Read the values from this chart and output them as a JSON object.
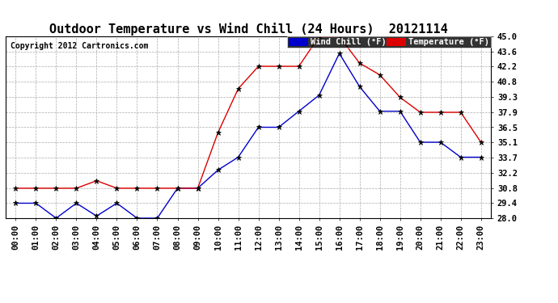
{
  "title": "Outdoor Temperature vs Wind Chill (24 Hours)  20121114",
  "copyright": "Copyright 2012 Cartronics.com",
  "legend_wind": "Wind Chill (°F)",
  "legend_temp": "Temperature (°F)",
  "hours": [
    "00:00",
    "01:00",
    "02:00",
    "03:00",
    "04:00",
    "05:00",
    "06:00",
    "07:00",
    "08:00",
    "09:00",
    "10:00",
    "11:00",
    "12:00",
    "13:00",
    "14:00",
    "15:00",
    "16:00",
    "17:00",
    "18:00",
    "19:00",
    "20:00",
    "21:00",
    "22:00",
    "23:00"
  ],
  "temperature": [
    30.8,
    30.8,
    30.8,
    30.8,
    31.5,
    30.8,
    30.8,
    30.8,
    30.8,
    30.8,
    36.0,
    40.1,
    42.2,
    42.2,
    42.2,
    45.0,
    45.0,
    42.5,
    41.4,
    39.3,
    37.9,
    37.9,
    37.9,
    35.1
  ],
  "wind_chill": [
    29.4,
    29.4,
    28.0,
    29.4,
    28.2,
    29.4,
    28.0,
    28.0,
    30.8,
    30.8,
    32.5,
    33.7,
    36.5,
    36.5,
    38.0,
    39.5,
    43.4,
    40.3,
    38.0,
    38.0,
    35.1,
    35.1,
    33.7,
    33.7
  ],
  "ylim": [
    28.0,
    45.0
  ],
  "yticks": [
    28.0,
    29.4,
    30.8,
    32.2,
    33.7,
    35.1,
    36.5,
    37.9,
    39.3,
    40.8,
    42.2,
    43.6,
    45.0
  ],
  "bg_color": "#ffffff",
  "plot_bg_color": "#ffffff",
  "grid_color": "#aaaaaa",
  "temp_color": "#dd0000",
  "wind_color": "#0000cc",
  "marker_color": "#000000",
  "title_fontsize": 11,
  "copyright_fontsize": 7,
  "tick_fontsize": 7.5
}
